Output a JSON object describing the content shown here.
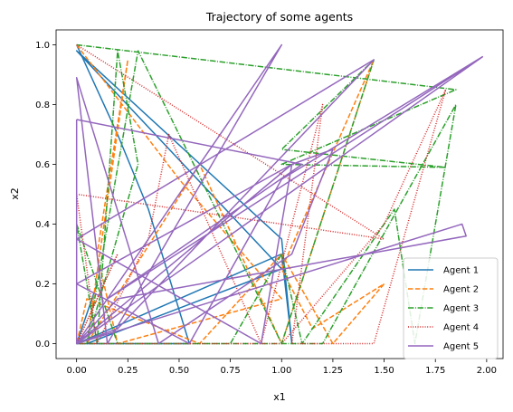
{
  "chart_data": {
    "type": "line",
    "title": "Trajectory of some agents",
    "xlabel": "x1",
    "ylabel": "x2",
    "xlim": [
      -0.1,
      2.08
    ],
    "ylim": [
      -0.05,
      1.05
    ],
    "xticks": [
      0.0,
      0.25,
      0.5,
      0.75,
      1.0,
      1.25,
      1.5,
      1.75,
      2.0
    ],
    "xtick_labels": [
      "0.00",
      "0.25",
      "0.50",
      "0.75",
      "1.00",
      "1.25",
      "1.50",
      "1.75",
      "2.00"
    ],
    "yticks": [
      0.0,
      0.2,
      0.4,
      0.6,
      0.8,
      1.0
    ],
    "ytick_labels": [
      "0.0",
      "0.2",
      "0.4",
      "0.6",
      "0.8",
      "1.0"
    ],
    "grid": false,
    "legend_position": "lower-right",
    "series": [
      {
        "name": "Agent 1",
        "color": "#1f77b4",
        "style": "solid",
        "points": [
          [
            0.0,
            1.0
          ],
          [
            0.2,
            0.7
          ],
          [
            0.35,
            0.45
          ],
          [
            0.55,
            0.0
          ],
          [
            0.0,
            0.0
          ],
          [
            0.1,
            0.2
          ],
          [
            0.0,
            0.0
          ],
          [
            1.0,
            0.3
          ],
          [
            1.05,
            0.0
          ],
          [
            1.0,
            0.35
          ],
          [
            0.0,
            0.98
          ],
          [
            1.0,
            0.25
          ],
          [
            0.05,
            0.0
          ]
        ]
      },
      {
        "name": "Agent 2",
        "color": "#ff7f0e",
        "style": "dashed",
        "points": [
          [
            0.0,
            1.0
          ],
          [
            0.5,
            0.55
          ],
          [
            1.0,
            0.15
          ],
          [
            0.2,
            0.0
          ],
          [
            0.1,
            0.3
          ],
          [
            0.25,
            0.95
          ],
          [
            0.05,
            0.0
          ],
          [
            0.6,
            0.6
          ],
          [
            1.0,
            0.0
          ],
          [
            1.45,
            0.95
          ],
          [
            1.0,
            0.25
          ],
          [
            1.15,
            0.05
          ],
          [
            1.5,
            0.2
          ],
          [
            1.25,
            0.0
          ],
          [
            1.0,
            0.3
          ],
          [
            0.6,
            0.0
          ],
          [
            0.05,
            0.15
          ],
          [
            0.0,
            0.0
          ]
        ]
      },
      {
        "name": "Agent 3",
        "color": "#2ca02c",
        "style": "dashdot",
        "points": [
          [
            0.0,
            1.0
          ],
          [
            1.85,
            0.85
          ],
          [
            1.0,
            0.6
          ],
          [
            1.8,
            0.59
          ],
          [
            1.0,
            0.65
          ],
          [
            1.45,
            0.95
          ],
          [
            1.0,
            0.0
          ],
          [
            0.3,
            0.98
          ],
          [
            0.05,
            0.0
          ],
          [
            0.3,
            0.6
          ],
          [
            0.2,
            0.98
          ],
          [
            0.1,
            0.0
          ],
          [
            0.0,
            0.4
          ],
          [
            0.2,
            0.0
          ],
          [
            0.75,
            0.0
          ],
          [
            1.0,
            0.3
          ],
          [
            1.1,
            0.0
          ],
          [
            1.55,
            0.45
          ],
          [
            1.65,
            0.0
          ],
          [
            1.85,
            0.8
          ],
          [
            1.2,
            0.0
          ],
          [
            0.0,
            0.0
          ]
        ]
      },
      {
        "name": "Agent 4",
        "color": "#d62728",
        "style": "dotted",
        "points": [
          [
            0.0,
            1.0
          ],
          [
            1.5,
            0.35
          ],
          [
            0.0,
            0.5
          ],
          [
            0.1,
            0.0
          ],
          [
            0.35,
            0.35
          ],
          [
            0.45,
            0.7
          ],
          [
            0.9,
            0.0
          ],
          [
            1.2,
            0.8
          ],
          [
            1.05,
            0.0
          ],
          [
            1.45,
            0.0
          ],
          [
            1.8,
            0.85
          ],
          [
            1.5,
            0.4
          ],
          [
            1.0,
            0.0
          ],
          [
            0.2,
            0.0
          ],
          [
            0.0,
            0.0
          ],
          [
            0.2,
            0.3
          ],
          [
            0.0,
            0.0
          ]
        ]
      },
      {
        "name": "Agent 5",
        "color": "#9467bd",
        "style": "solid",
        "points": [
          [
            0.0,
            0.75
          ],
          [
            0.0,
            0.0
          ],
          [
            1.98,
            0.96
          ],
          [
            0.15,
            0.15
          ],
          [
            1.0,
            1.0
          ],
          [
            0.15,
            0.0
          ],
          [
            0.0,
            0.89
          ],
          [
            0.4,
            0.0
          ],
          [
            1.05,
            0.3
          ],
          [
            1.25,
            0.65
          ],
          [
            1.05,
            0.6
          ],
          [
            0.0,
            0.0
          ],
          [
            1.88,
            0.4
          ],
          [
            1.9,
            0.36
          ],
          [
            0.2,
            0.15
          ],
          [
            0.0,
            0.0
          ],
          [
            1.98,
            0.96
          ],
          [
            1.0,
            0.55
          ],
          [
            0.55,
            0.0
          ],
          [
            0.0,
            0.2
          ],
          [
            1.05,
            0.6
          ],
          [
            0.9,
            0.0
          ],
          [
            0.0,
            0.35
          ],
          [
            1.45,
            0.95
          ],
          [
            0.2,
            0.05
          ],
          [
            0.0,
            0.0
          ],
          [
            0.15,
            0.15
          ],
          [
            1.1,
            0.6
          ],
          [
            0.0,
            0.75
          ]
        ]
      }
    ]
  }
}
